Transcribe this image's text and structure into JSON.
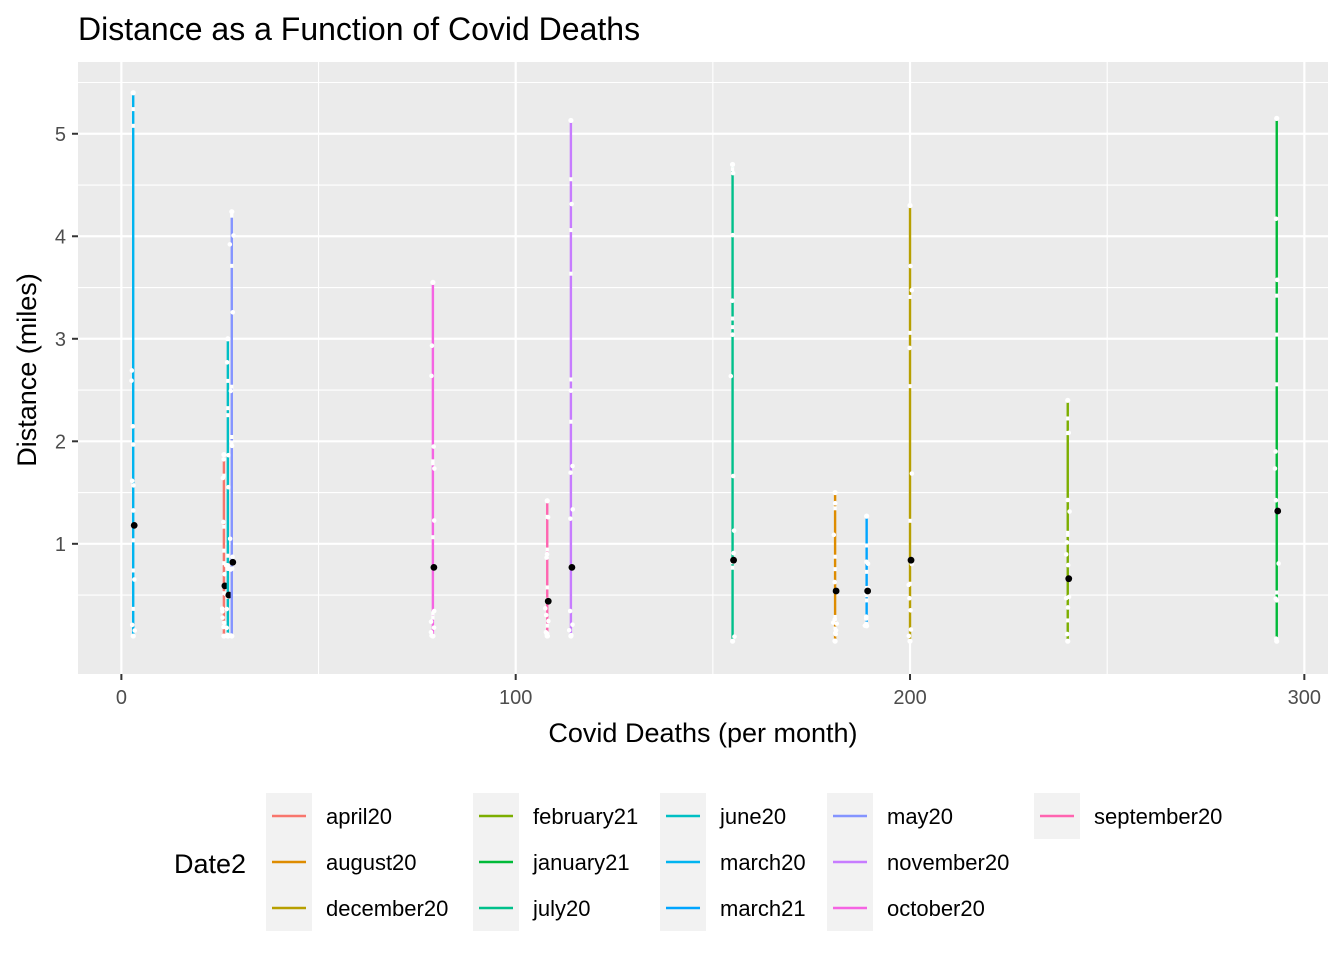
{
  "chart_data": {
    "type": "scatter",
    "title": "Distance as a Function of Covid Deaths",
    "xlabel": "Covid Deaths (per month)",
    "ylabel": "Distance (miles)",
    "xlim": [
      -11,
      306
    ],
    "ylim": [
      -0.27,
      5.7
    ],
    "xticks": [
      0,
      100,
      200,
      300
    ],
    "yticks": [
      1,
      2,
      3,
      4,
      5
    ],
    "grid": true,
    "legend": {
      "title": "Date2",
      "position": "bottom",
      "columns": [
        [
          "april20",
          "august20",
          "december20"
        ],
        [
          "february21",
          "january21",
          "july20"
        ],
        [
          "june20",
          "march20",
          "march21"
        ],
        [
          "may20",
          "november20",
          "october20"
        ],
        [
          "september20"
        ]
      ]
    },
    "colors": {
      "april20": "#F8766D",
      "august20": "#DE8C00",
      "december20": "#B79F00",
      "february21": "#7CAE00",
      "january21": "#00BA38",
      "july20": "#00C08B",
      "june20": "#00BFC4",
      "march20": "#00B4F0",
      "march21": "#00A5FF",
      "may20": "#8494FF",
      "november20": "#C77CFF",
      "october20": "#F564E3",
      "september20": "#FF64B0"
    },
    "series": [
      {
        "name": "march20",
        "deaths": 3,
        "distance_min": 0.1,
        "distance_max": 5.4,
        "mean_distance": 1.18
      },
      {
        "name": "april20",
        "deaths": 26,
        "distance_min": 0.1,
        "distance_max": 1.87,
        "mean_distance": 0.59
      },
      {
        "name": "june20",
        "deaths": 27,
        "distance_min": 0.1,
        "distance_max": 3.0,
        "mean_distance": 0.5
      },
      {
        "name": "may20",
        "deaths": 28,
        "distance_min": 0.1,
        "distance_max": 4.24,
        "mean_distance": 0.82
      },
      {
        "name": "october20",
        "deaths": 79,
        "distance_min": 0.1,
        "distance_max": 3.55,
        "mean_distance": 0.77
      },
      {
        "name": "september20",
        "deaths": 108,
        "distance_min": 0.1,
        "distance_max": 1.42,
        "mean_distance": 0.44
      },
      {
        "name": "november20",
        "deaths": 114,
        "distance_min": 0.1,
        "distance_max": 5.13,
        "mean_distance": 0.77
      },
      {
        "name": "july20",
        "deaths": 155,
        "distance_min": 0.05,
        "distance_max": 4.7,
        "mean_distance": 0.84
      },
      {
        "name": "august20",
        "deaths": 181,
        "distance_min": 0.05,
        "distance_max": 1.5,
        "mean_distance": 0.54
      },
      {
        "name": "march21",
        "deaths": 189,
        "distance_min": 0.2,
        "distance_max": 1.27,
        "mean_distance": 0.54
      },
      {
        "name": "december20",
        "deaths": 200,
        "distance_min": 0.05,
        "distance_max": 4.3,
        "mean_distance": 0.84
      },
      {
        "name": "february21",
        "deaths": 240,
        "distance_min": 0.05,
        "distance_max": 2.4,
        "mean_distance": 0.66
      },
      {
        "name": "january21",
        "deaths": 293,
        "distance_min": 0.05,
        "distance_max": 5.15,
        "mean_distance": 1.32
      }
    ]
  }
}
